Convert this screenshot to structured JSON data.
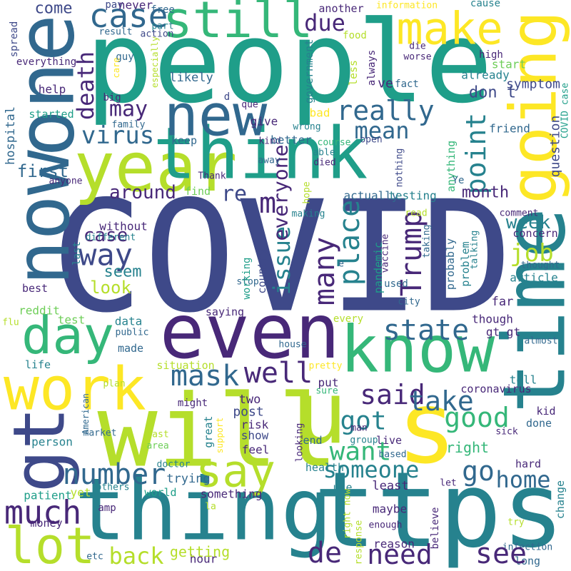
{
  "word_cloud": {
    "words": [
      "COVID",
      "people",
      "thing",
      "ttps",
      "will",
      "one",
      "now",
      "going",
      "time",
      "year",
      "think",
      "new",
      "still",
      "make",
      "case",
      "come",
      "even",
      "day",
      "work",
      "know",
      "s",
      "gt",
      "u",
      "say",
      "lot",
      "much",
      "number",
      "mask",
      "well",
      "said",
      "take",
      "good",
      "got",
      "want",
      "go",
      "someone",
      "home",
      "state",
      "Trump",
      "place",
      "many",
      "issue",
      "everyone",
      "m",
      "re",
      "point",
      "really",
      "mean",
      "due",
      "death",
      "may",
      "virus",
      "first",
      "around",
      "case",
      "way",
      "seem",
      "look",
      "job",
      "week",
      "month",
      "don t",
      "question",
      "pay",
      "never",
      "free",
      "cause",
      "information",
      "another",
      "result",
      "part",
      "action",
      "food",
      "die",
      "worse",
      "spread",
      "everything",
      "guy",
      "especially",
      "care",
      "big",
      "d",
      "que",
      "government",
      "less",
      "always",
      "ve",
      "start",
      "high",
      "fact",
      "symptom",
      "already",
      "likely",
      "help",
      "hospital",
      "started",
      "family",
      "bad",
      "give",
      "wrong",
      "kind",
      "better",
      "keep",
      "course",
      "open",
      "friend",
      "able",
      "away",
      "died",
      "nothing",
      "anything",
      "COVID case",
      "Thank",
      "anyone",
      "find",
      "hope",
      "making",
      "Ye",
      "actually",
      "testing",
      "read",
      "comment",
      "taking",
      "concern",
      "without",
      "different",
      "last",
      "e",
      "vaccine",
      "talking",
      "problem",
      "probably",
      "pandemic",
      "thought",
      "article",
      "used",
      "stop",
      "working",
      "country",
      "best",
      "reddit",
      "test",
      "flu",
      "city",
      "far",
      "saying",
      "data",
      "every",
      "though",
      "gt gt",
      "public",
      "made",
      "house",
      "almost",
      "situation",
      "life",
      "pretty",
      "put",
      "sure",
      "tell",
      "coronavirus",
      "plan",
      "American",
      "two",
      "might",
      "great",
      "post",
      "risk",
      "show",
      "support",
      "kid",
      "done",
      "sick",
      "man",
      "market",
      "person",
      "past",
      "area",
      "group",
      "live",
      "end",
      "looking",
      "feel",
      "right",
      "based",
      "hard",
      "doctor",
      "health",
      "trying",
      "let",
      "world",
      "something",
      "patient",
      "yet",
      "others",
      "use",
      "least",
      "change",
      "amp",
      "la",
      "maybe",
      "right now",
      "money",
      "try",
      "enough",
      "believe",
      "response",
      "reason",
      "infection",
      "long",
      "hour",
      "back",
      "getting",
      "de",
      "need",
      "see",
      "etc"
    ]
  }
}
